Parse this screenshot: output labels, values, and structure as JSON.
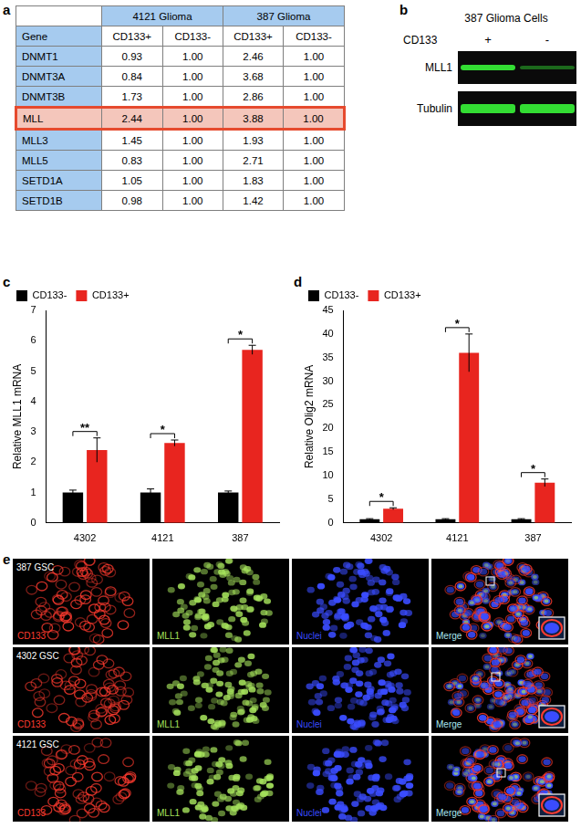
{
  "panel_a": {
    "label": "a",
    "table": {
      "groups": [
        "4121 Glioma",
        "387 Glioma"
      ],
      "header": [
        "Gene",
        "CD133+",
        "CD133-",
        "CD133+",
        "CD133-"
      ],
      "rows": [
        [
          "DNMT1",
          "0.93",
          "1.00",
          "2.46",
          "1.00"
        ],
        [
          "DNMT3A",
          "0.84",
          "1.00",
          "3.68",
          "1.00"
        ],
        [
          "DNMT3B",
          "1.73",
          "1.00",
          "2.86",
          "1.00"
        ],
        [
          "MLL",
          "2.44",
          "1.00",
          "3.88",
          "1.00"
        ],
        [
          "MLL3",
          "1.45",
          "1.00",
          "1.93",
          "1.00"
        ],
        [
          "MLL5",
          "0.83",
          "1.00",
          "2.71",
          "1.00"
        ],
        [
          "SETD1A",
          "1.05",
          "1.00",
          "1.83",
          "1.00"
        ],
        [
          "SETD1B",
          "0.98",
          "1.00",
          "1.42",
          "1.00"
        ]
      ],
      "highlighted_row": "MLL"
    }
  },
  "panel_b": {
    "label": "b",
    "title": "387 Glioma Cells",
    "row_label": "CD133",
    "lanes": [
      "+",
      "-"
    ],
    "bands": [
      "MLL1",
      "Tubulin"
    ]
  },
  "chart_data": [
    {
      "panel_label": "c",
      "type": "bar",
      "categories": [
        "4302",
        "4121",
        "387"
      ],
      "y_label": "Relative MLL1 mRNA",
      "ylim": [
        0,
        7
      ],
      "yticks": [
        0,
        1,
        2,
        3,
        4,
        5,
        6,
        7
      ],
      "grid": false,
      "legend": "top-left",
      "series": [
        {
          "name": "CD133-",
          "color": "#000000",
          "values": [
            1.0,
            1.0,
            1.0
          ],
          "errors": [
            0.08,
            0.12,
            0.05
          ]
        },
        {
          "name": "CD133+",
          "color": "#e8251f",
          "values": [
            2.4,
            2.63,
            5.7
          ],
          "errors": [
            0.4,
            0.1,
            0.15
          ]
        }
      ],
      "annotations": [
        "**",
        "*",
        "*"
      ]
    },
    {
      "panel_label": "d",
      "type": "bar",
      "categories": [
        "4302",
        "4121",
        "387"
      ],
      "y_label": "Relative Olig2 mRNA",
      "ylim": [
        0,
        45
      ],
      "yticks": [
        0,
        5,
        10,
        15,
        20,
        25,
        30,
        35,
        40,
        45
      ],
      "grid": false,
      "legend": "top-left",
      "series": [
        {
          "name": "CD133-",
          "color": "#000000",
          "values": [
            0.8,
            0.8,
            0.8
          ],
          "errors": [
            0.1,
            0.1,
            0.1
          ]
        },
        {
          "name": "CD133+",
          "color": "#e8251f",
          "values": [
            3.0,
            36.0,
            8.5
          ],
          "errors": [
            0.2,
            4.0,
            0.8
          ]
        }
      ],
      "annotations": [
        "*",
        "*",
        "*"
      ]
    }
  ],
  "panel_e": {
    "label": "e",
    "rows": [
      "387 GSC",
      "4302 GSC",
      "4121 GSC"
    ],
    "channels": [
      {
        "name": "CD133",
        "color": "#ff3b2f"
      },
      {
        "name": "MLL1",
        "color": "#a6e35c"
      },
      {
        "name": "Nuclei",
        "color": "#3a4cff"
      },
      {
        "name": "Merge",
        "color": "#a8e8f2"
      }
    ]
  }
}
